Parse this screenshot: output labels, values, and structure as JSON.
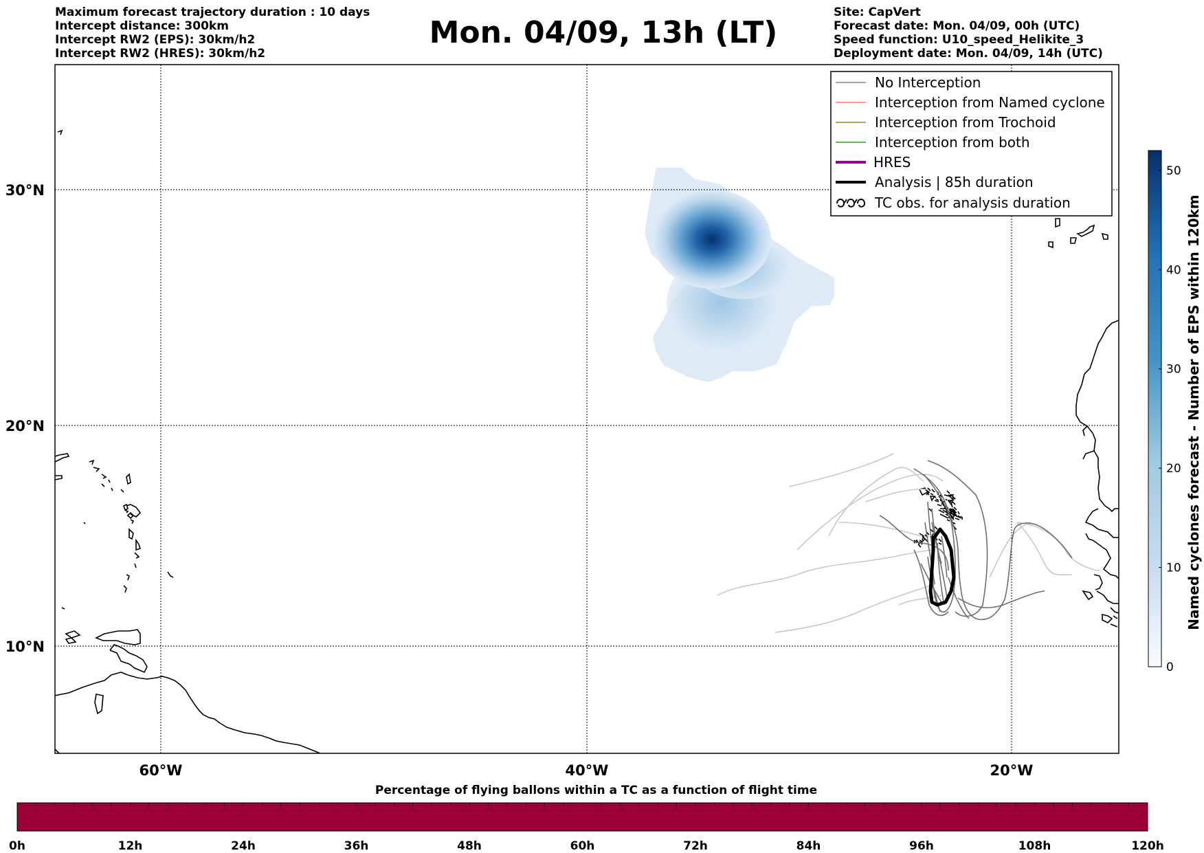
{
  "header_left": [
    "Maximum forecast trajectory duration : 10 days",
    "Intercept distance: 300km",
    "Intercept RW2 (EPS):  30km/h2",
    "Intercept RW2 (HRES): 30km/h2"
  ],
  "title": "Mon. 04/09, 13h (LT)",
  "header_right": [
    "Site: CapVert",
    "Forecast date: Mon. 04/09, 00h (UTC)",
    "Speed function: U10_speed_Helikite_3",
    "Deployment date: Mon. 04/09, 14h (UTC)"
  ],
  "lat_ticks": [
    "30°N",
    "20°N",
    "10°N"
  ],
  "lon_ticks": [
    "60°W",
    "40°W",
    "20°W"
  ],
  "legend": [
    {
      "label": "No Interception",
      "color": "#808080",
      "icon": "thin-line"
    },
    {
      "label": "Interception from Named cyclone",
      "color": "#ff7f50",
      "icon": "thin-line"
    },
    {
      "label": "Interception from Trochoid",
      "color": "#9a8a2a",
      "icon": "thin-line"
    },
    {
      "label": "Interception from both",
      "color": "#2ca02c",
      "icon": "thin-line"
    },
    {
      "label": "HRES",
      "color": "#990099",
      "icon": "thick-line"
    },
    {
      "label": "Analysis | 85h duration",
      "color": "#000000",
      "icon": "thick-line"
    },
    {
      "label": "TC obs. for analysis duration",
      "color": "#000000",
      "icon": "tc-symbol-icon",
      "symbol": "ᴝᴝᴝ"
    }
  ],
  "colorbar": {
    "label": "Named cyclones forecast - Number of EPS within 120km",
    "ticks": [
      "0",
      "10",
      "20",
      "30",
      "40",
      "50"
    ],
    "min": 0,
    "max": 52,
    "colormap": "Blues"
  },
  "bottom_bar": {
    "title": "Percentage of flying ballons within a TC as a function of flight time",
    "ticks": [
      "0h",
      "12h",
      "24h",
      "36h",
      "48h",
      "60h",
      "72h",
      "84h",
      "96h",
      "108h",
      "120h"
    ],
    "fill_color": "#9b0038",
    "percent_value": 100
  }
}
